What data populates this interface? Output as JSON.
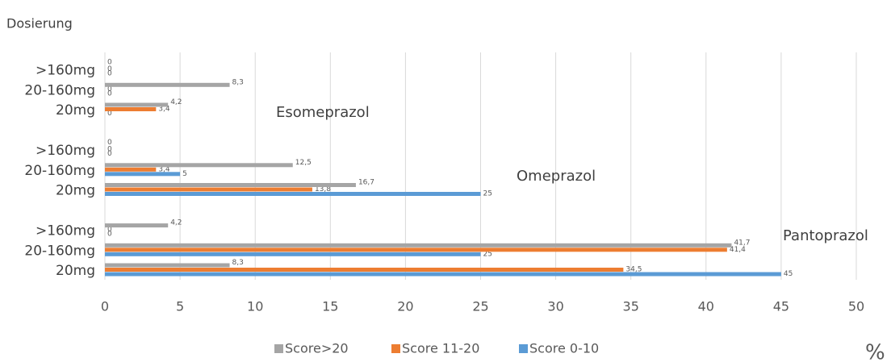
{
  "chart_data": {
    "type": "bar",
    "orientation": "horizontal",
    "ylabel": "Dosierung",
    "xlabel": "%",
    "categories": [
      "20mg",
      "20-160mg",
      ">160mg",
      "20mg",
      "20-160mg",
      ">160mg",
      "20mg",
      "20-160mg",
      ">160mg"
    ],
    "annotations": [
      "Pantoprazol",
      "Omeprazol",
      "Esomeprazol"
    ],
    "series": [
      {
        "name": "Score 0-10",
        "color": "#5b9bd5",
        "values": [
          45,
          25,
          0,
          25,
          5,
          0,
          0,
          0,
          0
        ],
        "value_labels": [
          "45",
          "25",
          "0",
          "25",
          "5",
          "0",
          "0",
          "0",
          "0"
        ]
      },
      {
        "name": "Score 11-20",
        "color": "#ed7d31",
        "values": [
          34.5,
          41.4,
          0,
          13.8,
          3.4,
          0,
          3.4,
          0,
          0
        ],
        "value_labels": [
          "34,5",
          "41,4",
          "0",
          "13,8",
          "3,4",
          "0",
          "3,4",
          "0",
          "0"
        ]
      },
      {
        "name": "Score>20",
        "color": "#a5a5a5",
        "values": [
          8.3,
          41.7,
          4.2,
          16.7,
          12.5,
          0,
          4.2,
          8.3,
          0
        ],
        "value_labels": [
          "8,3",
          "41,7",
          "4,2",
          "16,7",
          "12,5",
          "0",
          "4,2",
          "8,3",
          "0"
        ]
      }
    ],
    "xlim": [
      0,
      50
    ],
    "xticks": [
      0,
      5,
      10,
      15,
      20,
      25,
      30,
      35,
      40,
      45,
      50
    ],
    "grid": true,
    "legend": "bottom"
  }
}
